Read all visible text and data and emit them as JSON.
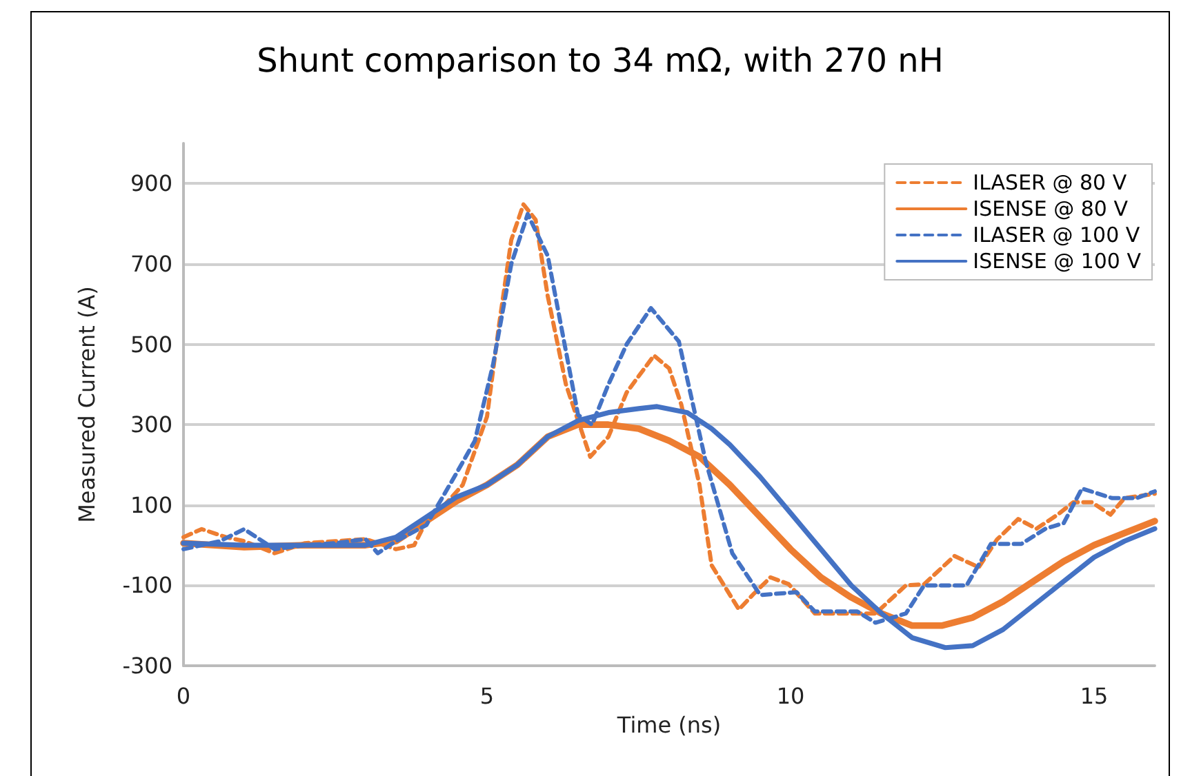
{
  "chart_data": {
    "type": "line",
    "title": "Shunt comparison to 34 mΩ, with 270 nH",
    "xlabel": "Time (ns)",
    "ylabel": "Measured Current (A)",
    "xlim": [
      0,
      16
    ],
    "xticks": [
      0,
      5,
      10,
      15
    ],
    "ylim": [
      -300,
      1000
    ],
    "yticks": [
      -300,
      -100,
      100,
      300,
      500,
      700,
      900
    ],
    "grid": "y",
    "legend": "top right",
    "marker": "none",
    "series": [
      {
        "name": "ILASER @ 80 V",
        "color": "#ed7d31",
        "line_style": "dashed",
        "x": [
          0,
          0.3,
          0.7,
          1,
          1.5,
          2,
          2.5,
          3,
          3.5,
          3.8,
          4,
          4.3,
          4.6,
          5,
          5.2,
          5.4,
          5.6,
          5.8,
          6,
          6.3,
          6.7,
          7,
          7.3,
          7.75,
          8,
          8.2,
          8.5,
          8.7,
          9.15,
          9.4,
          9.67,
          9.97,
          10.4,
          11.4,
          11.9,
          12.2,
          12.7,
          13.1,
          13.4,
          13.75,
          14.05,
          14.4,
          14.66,
          14.96,
          15.27,
          15.5,
          16
        ],
        "values": [
          20,
          40,
          20,
          10,
          -20,
          5,
          10,
          15,
          -10,
          0,
          60,
          100,
          150,
          320,
          550,
          760,
          848,
          810,
          620,
          400,
          220,
          270,
          380,
          472,
          440,
          350,
          150,
          -50,
          -160,
          -120,
          -80,
          -97,
          -170,
          -170,
          -100,
          -97,
          -27,
          -55,
          14,
          65,
          41,
          76,
          107,
          107,
          76,
          117,
          128
        ]
      },
      {
        "name": "ISENSE @ 80 V",
        "color": "#ed7d31",
        "line_style": "solid",
        "x": [
          0,
          1,
          2,
          3,
          3.5,
          4,
          4.5,
          5,
          5.5,
          6,
          6.5,
          7,
          7.5,
          8,
          8.5,
          9,
          9.5,
          10,
          10.5,
          11,
          11.5,
          12,
          12.5,
          13,
          13.5,
          14,
          14.5,
          15,
          15.5,
          16
        ],
        "values": [
          5,
          -5,
          0,
          0,
          10,
          60,
          110,
          150,
          200,
          270,
          300,
          300,
          290,
          260,
          220,
          150,
          70,
          -10,
          -80,
          -130,
          -170,
          -200,
          -200,
          -180,
          -140,
          -90,
          -40,
          0,
          30,
          60
        ]
      },
      {
        "name": "ILASER @ 100 V",
        "color": "#4472c4",
        "line_style": "dashed",
        "x": [
          0,
          0.3,
          0.6,
          1,
          1.2,
          1.5,
          2,
          2.5,
          3,
          3.2,
          3.5,
          4,
          4.5,
          4.8,
          5.1,
          5.4,
          5.67,
          6,
          6.5,
          6.73,
          7,
          7.3,
          7.7,
          8.16,
          8.6,
          9.04,
          9.5,
          10.1,
          10.4,
          11.1,
          11.4,
          11.9,
          12.2,
          12.9,
          13.3,
          13.8,
          14.2,
          14.5,
          14.8,
          15.3,
          15.7,
          16
        ],
        "values": [
          -10,
          0,
          10,
          40,
          20,
          -10,
          0,
          5,
          15,
          -20,
          10,
          50,
          180,
          260,
          450,
          700,
          824,
          720,
          324,
          300,
          400,
          500,
          590,
          507,
          210,
          -20,
          -124,
          -117,
          -165,
          -165,
          -193,
          -170,
          -100,
          -100,
          3,
          3,
          41,
          55,
          141,
          117,
          117,
          134
        ]
      },
      {
        "name": "ISENSE @ 100 V",
        "color": "#4472c4",
        "line_style": "solid",
        "x": [
          0,
          1,
          2,
          3,
          3.5,
          4,
          4.5,
          5,
          5.5,
          6,
          6.5,
          7,
          7.5,
          7.8,
          8.3,
          8.7,
          9,
          9.5,
          10,
          10.5,
          11,
          11.5,
          12,
          12.55,
          13,
          13.5,
          14,
          14.5,
          15,
          15.5,
          16
        ],
        "values": [
          5,
          0,
          0,
          0,
          20,
          70,
          120,
          150,
          200,
          270,
          310,
          330,
          340,
          345,
          330,
          290,
          250,
          170,
          80,
          -10,
          -100,
          -170,
          -230,
          -255,
          -250,
          -210,
          -150,
          -90,
          -30,
          10,
          41
        ]
      }
    ]
  }
}
